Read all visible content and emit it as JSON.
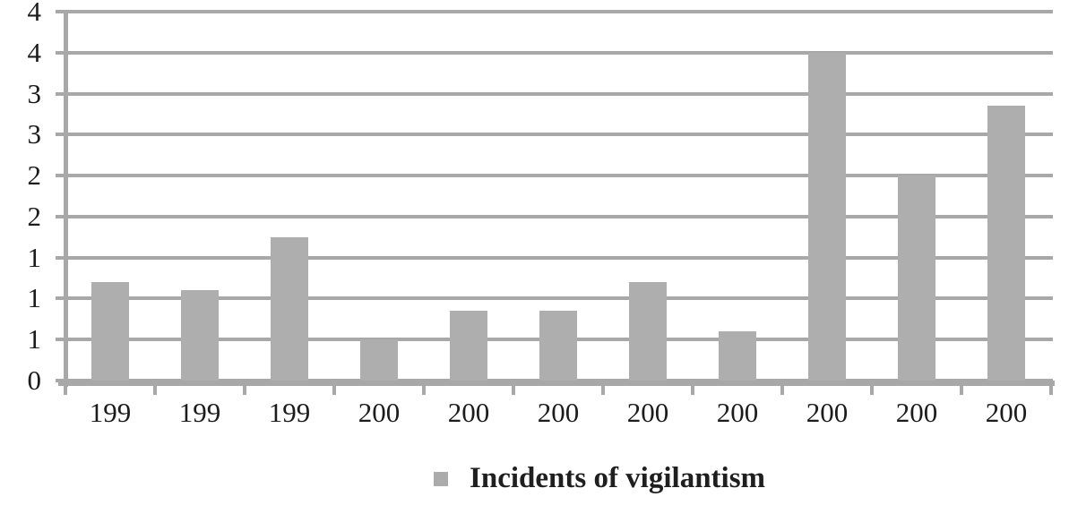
{
  "chart_data": {
    "type": "bar",
    "title": "",
    "legend_label": "Incidents of vigilantism",
    "legend_position": "bottom",
    "grid": "horizontal",
    "categories": [
      "199",
      "199",
      "199",
      "200",
      "200",
      "200",
      "200",
      "200",
      "200",
      "200",
      "200"
    ],
    "values": [
      1.2,
      1.1,
      1.75,
      0.5,
      0.85,
      0.85,
      1.2,
      0.6,
      4.0,
      2.5,
      3.35
    ],
    "y_tick_labels_top_to_bottom": [
      "4",
      "4",
      "3",
      "3",
      "2",
      "2",
      "1",
      "1",
      "1",
      "0"
    ],
    "ylim": [
      0,
      4.5
    ],
    "y_gridline_step": 0.5,
    "colors": {
      "bar": "#aeaeae",
      "gridline": "#a8a8a8",
      "axis": "#a8a8a8",
      "tick_label_text": "#1c1c1c",
      "legend_text": "#1f1f1f",
      "legend_marker": "#ababab",
      "background": "#ffffff"
    }
  }
}
